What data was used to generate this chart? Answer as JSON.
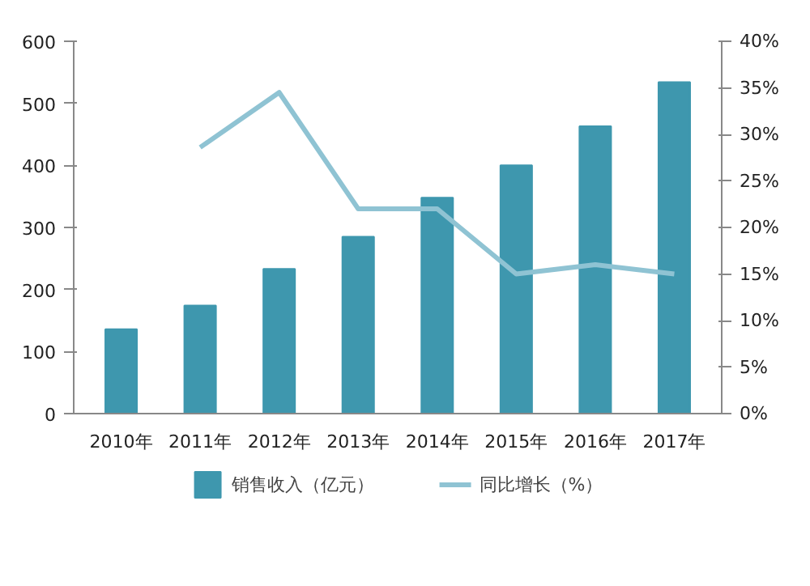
{
  "chart_data": {
    "type": "bar",
    "categories": [
      "2010年",
      "2011年",
      "2012年",
      "2013年",
      "2014年",
      "2015年",
      "2016年",
      "2017年"
    ],
    "series": [
      {
        "name": "销售收入（亿元）",
        "color": "#3e97ae",
        "values": [
          136,
          174,
          233,
          285,
          348,
          400,
          463,
          534
        ]
      },
      {
        "name": "同比增长（%）",
        "type": "line",
        "axis": "y2",
        "color": "#8fc3d3",
        "values": [
          null,
          28.6,
          34.5,
          22.0,
          22.0,
          15.0,
          16.0,
          15.0
        ]
      }
    ],
    "ylim": [
      0,
      600
    ],
    "yticks": [
      0,
      100,
      200,
      300,
      400,
      500,
      600
    ],
    "y2lim": [
      0,
      40
    ],
    "y2ticks": [
      {
        "value": 0,
        "label": "0%"
      },
      {
        "value": 5,
        "label": "5%"
      },
      {
        "value": 10,
        "label": "10%"
      },
      {
        "value": 15,
        "label": "15%"
      },
      {
        "value": 20,
        "label": "20%"
      },
      {
        "value": 25,
        "label": "25%"
      },
      {
        "value": 30,
        "label": "30%"
      },
      {
        "value": 35,
        "label": "35%"
      },
      {
        "value": 40,
        "label": "40%"
      }
    ],
    "grid": false,
    "legend": "bottom",
    "line_style": "solid"
  }
}
